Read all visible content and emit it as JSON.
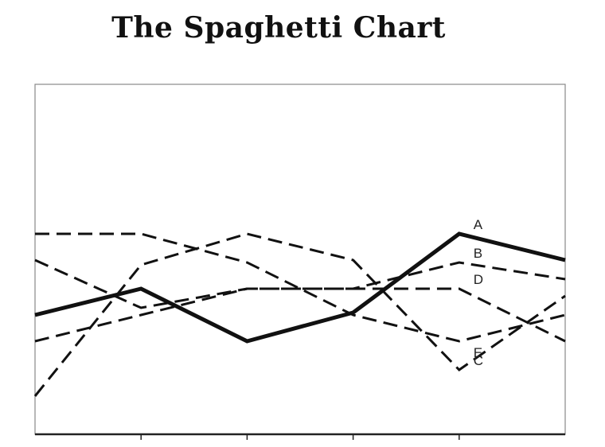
{
  "page": {
    "title": "The Spaghetti Chart"
  },
  "chart_data": {
    "type": "line",
    "title": "The Spaghetti Chart",
    "xlabel": "",
    "ylabel": "",
    "x": [
      0,
      1,
      2,
      3,
      4,
      5
    ],
    "ylim": [
      0,
      100
    ],
    "grid": false,
    "legend": "end-of-line labels",
    "series": [
      {
        "name": "A",
        "style": "solid",
        "values": [
          34,
          45,
          23,
          35,
          68,
          57
        ]
      },
      {
        "name": "B",
        "style": "dashed",
        "values": [
          57,
          37,
          45,
          45,
          56,
          49
        ]
      },
      {
        "name": "C",
        "style": "dashed",
        "values": [
          0,
          55,
          68,
          57,
          11,
          42
        ]
      },
      {
        "name": "D",
        "style": "dashed",
        "values": [
          23,
          34,
          45,
          45,
          45,
          23
        ]
      },
      {
        "name": "E",
        "style": "dashed",
        "values": [
          68,
          68,
          56,
          34,
          23,
          34
        ]
      }
    ],
    "colors": {
      "line": "#111111",
      "frame": "#888888",
      "axis": "#222222"
    }
  }
}
